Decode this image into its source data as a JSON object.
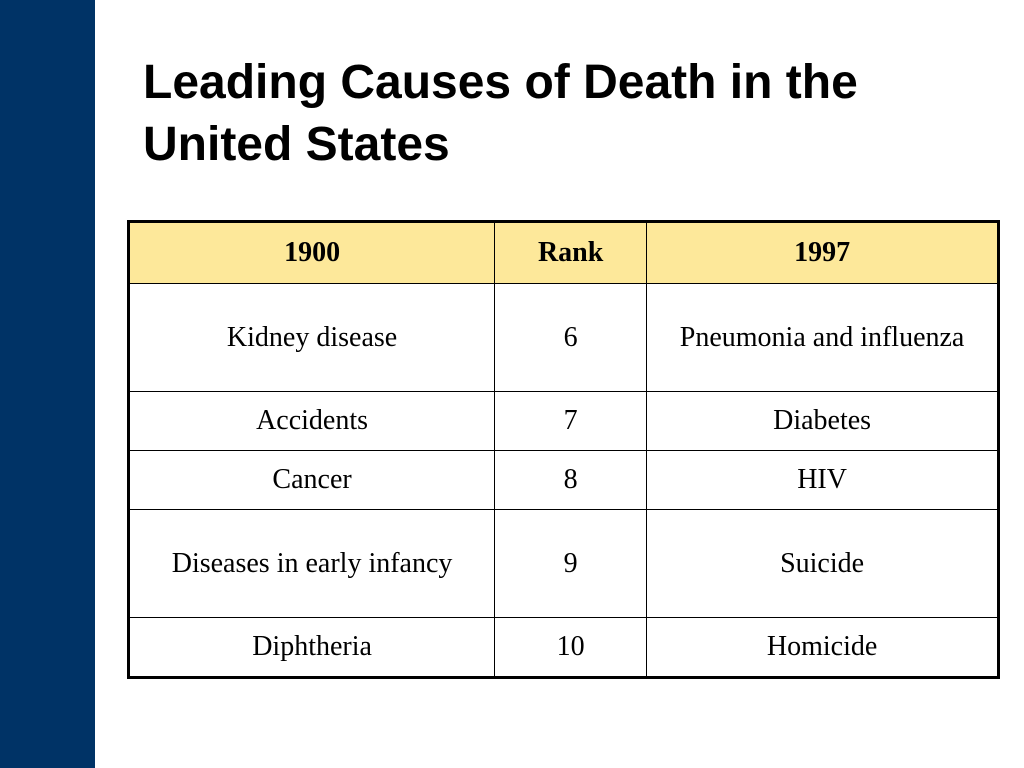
{
  "slide": {
    "title": "Leading Causes of Death in the United States",
    "colors": {
      "sidebar": "#003366",
      "header_fill": "#fde89a"
    }
  },
  "table": {
    "headers": [
      "1900",
      "Rank",
      "1997"
    ],
    "rows": [
      {
        "y1900": "Kidney disease",
        "rank": "6",
        "y1997": "Pneumonia and influenza"
      },
      {
        "y1900": "Accidents",
        "rank": "7",
        "y1997": "Diabetes"
      },
      {
        "y1900": "Cancer",
        "rank": "8",
        "y1997": "HIV"
      },
      {
        "y1900": "Diseases in early infancy",
        "rank": "9",
        "y1997": "Suicide"
      },
      {
        "y1900": "Diphtheria",
        "rank": "10",
        "y1997": "Homicide"
      }
    ]
  }
}
